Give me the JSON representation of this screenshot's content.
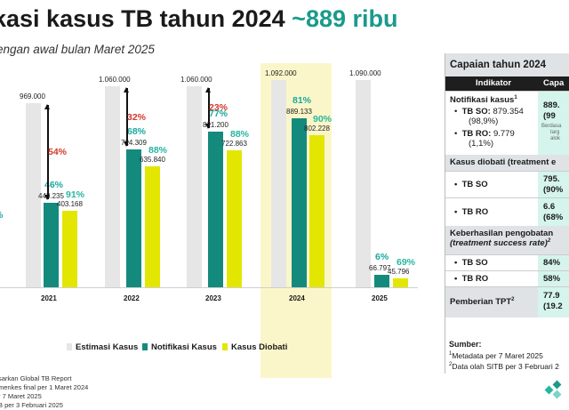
{
  "header": {
    "title": "kasi kasus TB tahun 2024",
    "title_accent": "~889 ribu",
    "subtitle": "engan awal bulan Maret 2025"
  },
  "colors": {
    "estimasi": "#e6e6e6",
    "notifikasi": "#148a7d",
    "diobati": "#e3e600",
    "accent_teal": "#1a9a8c",
    "red": "#d33a2c",
    "highlight": "#fbf6c9"
  },
  "chart_data": {
    "type": "bar",
    "categories": [
      "2021",
      "2022",
      "2023",
      "2024",
      "2025"
    ],
    "series": [
      {
        "name": "Estimasi Kasus",
        "values": [
          969000,
          1060000,
          1060000,
          1092000,
          1090000
        ],
        "labels": [
          "969.000",
          "1.060.000",
          "1.060.000",
          "1.092.000",
          "1.090.000"
        ]
      },
      {
        "name": "Notifikasi Kasus",
        "values": [
          443235,
          724309,
          821200,
          889133,
          66797
        ],
        "labels": [
          "443.235",
          "724.309",
          "821.200",
          "889.133",
          "66.797"
        ],
        "pct": [
          "46%",
          "68%",
          "77%",
          "81%",
          "6%"
        ]
      },
      {
        "name": "Kasus Diobati",
        "values": [
          403168,
          635840,
          722863,
          802228,
          45796
        ],
        "labels": [
          "403.168",
          "635.840",
          "722.863",
          "802.228",
          "45.796"
        ],
        "pct": [
          "91%",
          "88%",
          "88%",
          "90%",
          "69%"
        ]
      }
    ],
    "gap_labels": [
      "54%",
      "32%",
      "23%"
    ],
    "partial_left_label": "%",
    "highlight_category": "2024",
    "ylim": [
      0,
      1092000
    ],
    "legend_position": "bottom"
  },
  "legend": {
    "estimasi": "Estimasi Kasus",
    "notifikasi": "Notifikasi Kasus",
    "diobati": "Kasus Diobati"
  },
  "footnotes": [
    "sarkan Global TB Report",
    "menkes final per 1 Maret 2024",
    "r 7 Maret 2025",
    "B per 3 Februari 2025"
  ],
  "table": {
    "title": "Capaian tahun 2024",
    "col_indicator": "Indikator",
    "col_capaian": "Capa",
    "notif_title": "Notifikasi kasus",
    "notif_sup": "1",
    "tbso_label": "TB SO:",
    "tbso_value": "879.354",
    "tbso_pct": "(98,9%)",
    "tbro_label": "TB RO:",
    "tbro_value": "9.779",
    "tbro_pct": "(1,1%)",
    "notif_value": "889.",
    "notif_pct": "(99",
    "notif_small_1": "Berdasa",
    "notif_small_2": "targ",
    "notif_small_3": "alok",
    "diobati_title": "Kasus diobati (treatment e",
    "diobati_so_label": "TB SO",
    "diobati_so_value": "795.",
    "diobati_so_pct": "(90%",
    "diobati_ro_label": "TB RO",
    "diobati_ro_value": "6.6",
    "diobati_ro_pct": "(68%",
    "tsr_title_1": "Keberhasilan pengobatan",
    "tsr_title_2": "(treatment success rate)",
    "tsr_sup": "2",
    "tsr_so_label": "TB SO",
    "tsr_so_value": "84%",
    "tsr_ro_label": "TB RO",
    "tsr_ro_value": "58%",
    "tpt_title": "Pemberian TPT",
    "tpt_sup": "2",
    "tpt_value": "77.9",
    "tpt_pct": "(19.2"
  },
  "sources": {
    "title": "Sumber:",
    "line1": "Metadata per 7 Maret 2025",
    "line1_sup": "1",
    "line2": "Data olah SITB per 3 Februari 2",
    "line2_sup": "2"
  }
}
